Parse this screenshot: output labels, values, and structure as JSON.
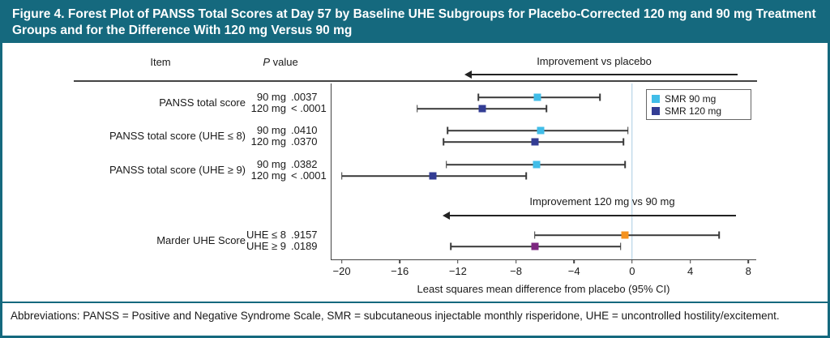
{
  "figure": {
    "title": "Figure 4. Forest Plot of PANSS Total Scores at Day 57 by Baseline UHE Subgroups for Placebo-Corrected 120 mg and 90 mg Treatment Groups and for the Difference With 120 mg Versus 90 mg",
    "abbreviations": "Abbreviations: PANSS = Positive and Negative Syndrome Scale, SMR = subcutaneous injectable monthly risperidone, UHE = uncontrolled hostility/excitement.",
    "header_color": "#15697E"
  },
  "columns": {
    "item": "Item",
    "p_italic": "P",
    "p_rest": " value"
  },
  "chart_data": {
    "type": "forest",
    "xlabel": "Least squares mean difference from placebo (95% CI)",
    "x_ticks": [
      -20,
      -16,
      -12,
      -8,
      -4,
      0,
      4,
      8
    ],
    "xlim": [
      -20.7,
      8.6
    ],
    "reference_line": 0,
    "grid": false,
    "legend_position": "top-right",
    "annotations": [
      {
        "text": "Improvement vs placebo",
        "direction": "left"
      },
      {
        "text": "Improvement 120 mg vs 90 mg",
        "direction": "left"
      }
    ],
    "legend": [
      {
        "label": "SMR 90 mg",
        "color": "#41BDE8"
      },
      {
        "label": "SMR 120 mg",
        "color": "#333D94"
      }
    ],
    "rows": [
      {
        "item": "PANSS total score",
        "entries": [
          {
            "p_label": "90 mg",
            "p_value": ".0037",
            "estimate": -6.5,
            "ci": [
              -10.6,
              -2.2
            ],
            "color": "#41BDE8",
            "series": "SMR 90 mg"
          },
          {
            "p_label": "120 mg",
            "p_value": "< .0001",
            "estimate": -10.3,
            "ci": [
              -14.8,
              -5.9
            ],
            "color": "#333D94",
            "series": "SMR 120 mg"
          }
        ]
      },
      {
        "item": "PANSS total score (UHE ≤ 8)",
        "entries": [
          {
            "p_label": "90 mg",
            "p_value": ".0410",
            "estimate": -6.3,
            "ci": [
              -12.7,
              -0.3
            ],
            "color": "#41BDE8",
            "series": "SMR 90 mg"
          },
          {
            "p_label": "120 mg",
            "p_value": ".0370",
            "estimate": -6.7,
            "ci": [
              -13.0,
              -0.6
            ],
            "color": "#333D94",
            "series": "SMR 120 mg"
          }
        ]
      },
      {
        "item": "PANSS total score (UHE ≥ 9)",
        "entries": [
          {
            "p_label": "90 mg",
            "p_value": ".0382",
            "estimate": -6.6,
            "ci": [
              -12.8,
              -0.5
            ],
            "color": "#41BDE8",
            "series": "SMR 90 mg"
          },
          {
            "p_label": "120 mg",
            "p_value": "< .0001",
            "estimate": -13.7,
            "ci": [
              -20.0,
              -7.3
            ],
            "color": "#333D94",
            "series": "SMR 120 mg"
          }
        ]
      },
      {
        "item": "Marder UHE Score",
        "entries": [
          {
            "p_label": "UHE ≤ 8",
            "p_value": ".9157",
            "estimate": -0.5,
            "ci": [
              -6.7,
              6.0
            ],
            "color": "#F5921E",
            "series": "UHE ≤ 8"
          },
          {
            "p_label": "UHE ≥ 9",
            "p_value": ".0189",
            "estimate": -6.7,
            "ci": [
              -12.5,
              -0.8
            ],
            "color": "#7D2680",
            "series": "UHE ≥ 9"
          }
        ]
      }
    ]
  }
}
